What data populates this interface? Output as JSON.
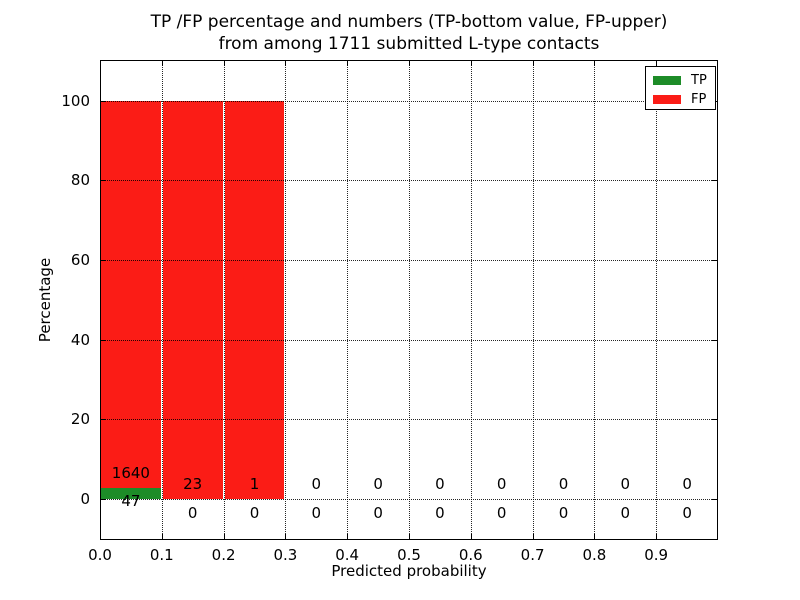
{
  "chart_data": {
    "type": "bar",
    "stacked": true,
    "title": "TP /FP percentage and numbers (TP-bottom value, FP-upper) from among 1711 submitted L-type contacts",
    "title_line1": "TP /FP percentage and numbers (TP-bottom value, FP-upper)",
    "title_line2": "from among 1711 submitted L-type contacts",
    "xlabel": "Predicted probability",
    "ylabel": "Percentage",
    "total_submitted": 1711,
    "bins": [
      "0.0-0.1",
      "0.1-0.2",
      "0.2-0.3",
      "0.3-0.4",
      "0.4-0.5",
      "0.5-0.6",
      "0.6-0.7",
      "0.7-0.8",
      "0.8-0.9",
      "0.9-1.0"
    ],
    "series": [
      {
        "name": "TP",
        "color": "#1d8c28",
        "counts": [
          47,
          0,
          0,
          0,
          0,
          0,
          0,
          0,
          0,
          0
        ],
        "pct": [
          2.79,
          0,
          0,
          0,
          0,
          0,
          0,
          0,
          0,
          0
        ]
      },
      {
        "name": "FP",
        "color": "#fb1c16",
        "counts": [
          1640,
          23,
          1,
          0,
          0,
          0,
          0,
          0,
          0,
          0
        ],
        "pct": [
          97.21,
          100,
          100,
          0,
          0,
          0,
          0,
          0,
          0,
          0
        ]
      }
    ],
    "x_ticks": [
      "0.0",
      "0.1",
      "0.2",
      "0.3",
      "0.4",
      "0.5",
      "0.6",
      "0.7",
      "0.8",
      "0.9"
    ],
    "y_ticks": [
      0,
      20,
      40,
      60,
      80,
      100
    ],
    "xlim": [
      0,
      1
    ],
    "ylim": [
      -10.3,
      110.2
    ],
    "grid": "dotted",
    "legend_position": "upper right"
  }
}
